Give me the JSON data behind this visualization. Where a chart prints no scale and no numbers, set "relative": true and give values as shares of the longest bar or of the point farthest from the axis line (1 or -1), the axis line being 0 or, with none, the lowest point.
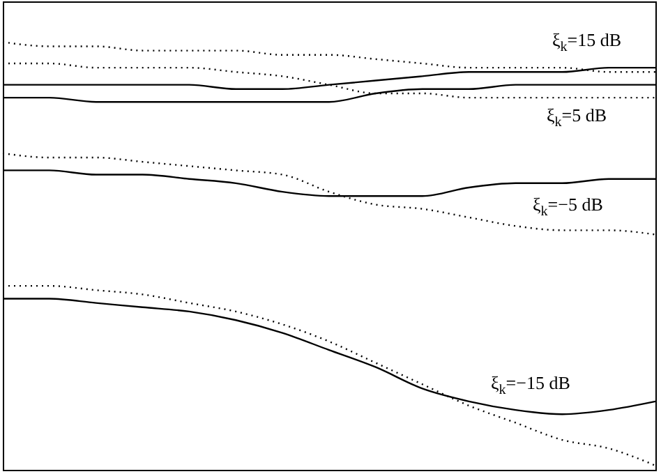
{
  "chart_data": {
    "type": "line",
    "relative": true,
    "legend": false,
    "tick_labels": false,
    "categories": [
      null,
      null,
      null,
      null,
      null,
      null,
      null,
      null,
      null,
      null,
      null,
      null,
      null,
      null,
      null
    ],
    "series": [
      {
        "color": "#000000",
        "line_style": "dotted",
        "values": [
          1.0,
          0.99,
          0.99,
          0.98,
          0.98,
          0.98,
          0.97,
          0.97,
          0.96,
          0.95,
          0.94,
          0.94,
          0.94,
          0.93,
          0.93
        ]
      },
      {
        "color": "#000000",
        "line_style": "solid",
        "values": [
          0.9,
          0.9,
          0.9,
          0.9,
          0.9,
          0.89,
          0.89,
          0.9,
          0.91,
          0.92,
          0.93,
          0.93,
          0.93,
          0.94,
          0.94
        ]
      },
      {
        "color": "#000000",
        "line_style": "dotted",
        "values": [
          0.95,
          0.95,
          0.94,
          0.94,
          0.94,
          0.93,
          0.92,
          0.9,
          0.88,
          0.88,
          0.87,
          0.87,
          0.87,
          0.87,
          0.87
        ]
      },
      {
        "color": "#000000",
        "line_style": "solid",
        "values": [
          0.87,
          0.87,
          0.86,
          0.86,
          0.86,
          0.86,
          0.86,
          0.86,
          0.88,
          0.89,
          0.89,
          0.9,
          0.9,
          0.9,
          0.9
        ]
      },
      {
        "color": "#000000",
        "line_style": "dotted",
        "values": [
          0.74,
          0.73,
          0.73,
          0.72,
          0.71,
          0.7,
          0.69,
          0.65,
          0.62,
          0.61,
          0.59,
          0.57,
          0.56,
          0.56,
          0.55
        ]
      },
      {
        "color": "#000000",
        "line_style": "solid",
        "values": [
          0.7,
          0.7,
          0.69,
          0.69,
          0.68,
          0.67,
          0.65,
          0.64,
          0.64,
          0.64,
          0.66,
          0.67,
          0.67,
          0.68,
          0.68
        ]
      },
      {
        "color": "#000000",
        "line_style": "dotted",
        "values": [
          0.43,
          0.43,
          0.42,
          0.41,
          0.39,
          0.37,
          0.34,
          0.3,
          0.25,
          0.2,
          0.15,
          0.11,
          0.07,
          0.05,
          0.01
        ]
      },
      {
        "color": "#000000",
        "line_style": "solid",
        "values": [
          0.4,
          0.4,
          0.39,
          0.38,
          0.37,
          0.35,
          0.32,
          0.28,
          0.24,
          0.19,
          0.16,
          0.14,
          0.13,
          0.14,
          0.16
        ]
      }
    ],
    "annotations": [
      "ξ$_{k}$=15 dB",
      "ξ$_{k}$=5 dB",
      "ξ$_{k}$=−5 dB",
      "ξ$_{k}$=−15 dB"
    ]
  }
}
